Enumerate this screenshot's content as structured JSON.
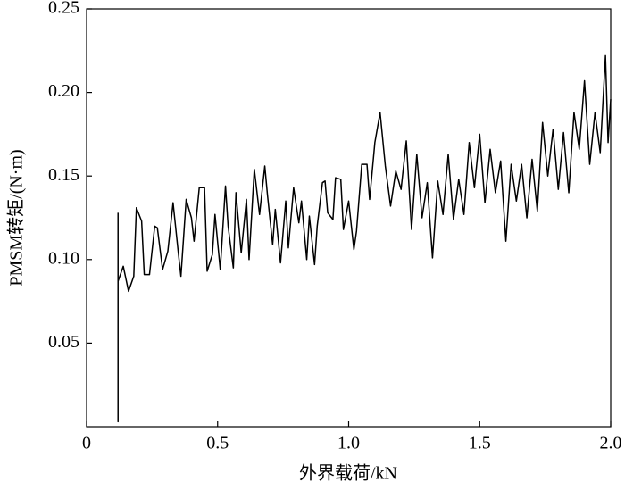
{
  "chart_data": {
    "type": "line",
    "xlabel": "外界载荷/kN",
    "ylabel": "PMSM转矩/(N·m)",
    "xlim": [
      0,
      2
    ],
    "ylim": [
      0,
      0.25
    ],
    "xticks": [
      0,
      0.5,
      {
        "value": 1,
        "label": "1.0"
      },
      1.5,
      {
        "value": 2,
        "label": "2.0"
      }
    ],
    "yticks": [
      0.05,
      {
        "value": 0.1,
        "label": "0.10"
      },
      0.15,
      {
        "value": 0.2,
        "label": "0.20"
      },
      0.25
    ],
    "color": "#000000",
    "x": [
      0.12,
      0.12,
      0.12,
      0.14,
      0.16,
      0.18,
      0.19,
      0.21,
      0.22,
      0.24,
      0.26,
      0.27,
      0.29,
      0.31,
      0.33,
      0.35,
      0.36,
      0.38,
      0.4,
      0.41,
      0.43,
      0.45,
      0.46,
      0.48,
      0.49,
      0.51,
      0.53,
      0.54,
      0.56,
      0.57,
      0.59,
      0.61,
      0.62,
      0.64,
      0.66,
      0.68,
      0.69,
      0.71,
      0.72,
      0.74,
      0.76,
      0.77,
      0.79,
      0.81,
      0.82,
      0.84,
      0.85,
      0.87,
      0.88,
      0.9,
      0.91,
      0.92,
      0.94,
      0.95,
      0.97,
      0.98,
      1.0,
      1.02,
      1.03,
      1.05,
      1.07,
      1.08,
      1.1,
      1.12,
      1.14,
      1.16,
      1.18,
      1.2,
      1.22,
      1.24,
      1.26,
      1.28,
      1.3,
      1.32,
      1.34,
      1.36,
      1.38,
      1.4,
      1.42,
      1.44,
      1.46,
      1.48,
      1.5,
      1.52,
      1.54,
      1.56,
      1.58,
      1.6,
      1.62,
      1.64,
      1.66,
      1.68,
      1.7,
      1.72,
      1.74,
      1.76,
      1.78,
      1.8,
      1.82,
      1.84,
      1.86,
      1.88,
      1.9,
      1.92,
      1.94,
      1.96,
      1.98,
      1.99,
      2.0
    ],
    "values": [
      0.128,
      0.003,
      0.087,
      0.096,
      0.081,
      0.09,
      0.131,
      0.123,
      0.091,
      0.091,
      0.12,
      0.119,
      0.094,
      0.105,
      0.134,
      0.104,
      0.09,
      0.136,
      0.125,
      0.111,
      0.143,
      0.143,
      0.093,
      0.103,
      0.127,
      0.094,
      0.144,
      0.12,
      0.095,
      0.14,
      0.104,
      0.136,
      0.1,
      0.154,
      0.127,
      0.156,
      0.139,
      0.109,
      0.13,
      0.098,
      0.135,
      0.107,
      0.143,
      0.122,
      0.135,
      0.1,
      0.126,
      0.097,
      0.12,
      0.146,
      0.147,
      0.128,
      0.124,
      0.149,
      0.148,
      0.118,
      0.135,
      0.106,
      0.117,
      0.157,
      0.157,
      0.136,
      0.17,
      0.188,
      0.156,
      0.132,
      0.153,
      0.142,
      0.171,
      0.118,
      0.163,
      0.125,
      0.146,
      0.101,
      0.147,
      0.127,
      0.163,
      0.124,
      0.148,
      0.127,
      0.17,
      0.143,
      0.175,
      0.134,
      0.166,
      0.14,
      0.159,
      0.111,
      0.157,
      0.135,
      0.157,
      0.125,
      0.16,
      0.129,
      0.182,
      0.15,
      0.178,
      0.142,
      0.176,
      0.14,
      0.188,
      0.166,
      0.207,
      0.157,
      0.188,
      0.164,
      0.222,
      0.17,
      0.196
    ]
  }
}
